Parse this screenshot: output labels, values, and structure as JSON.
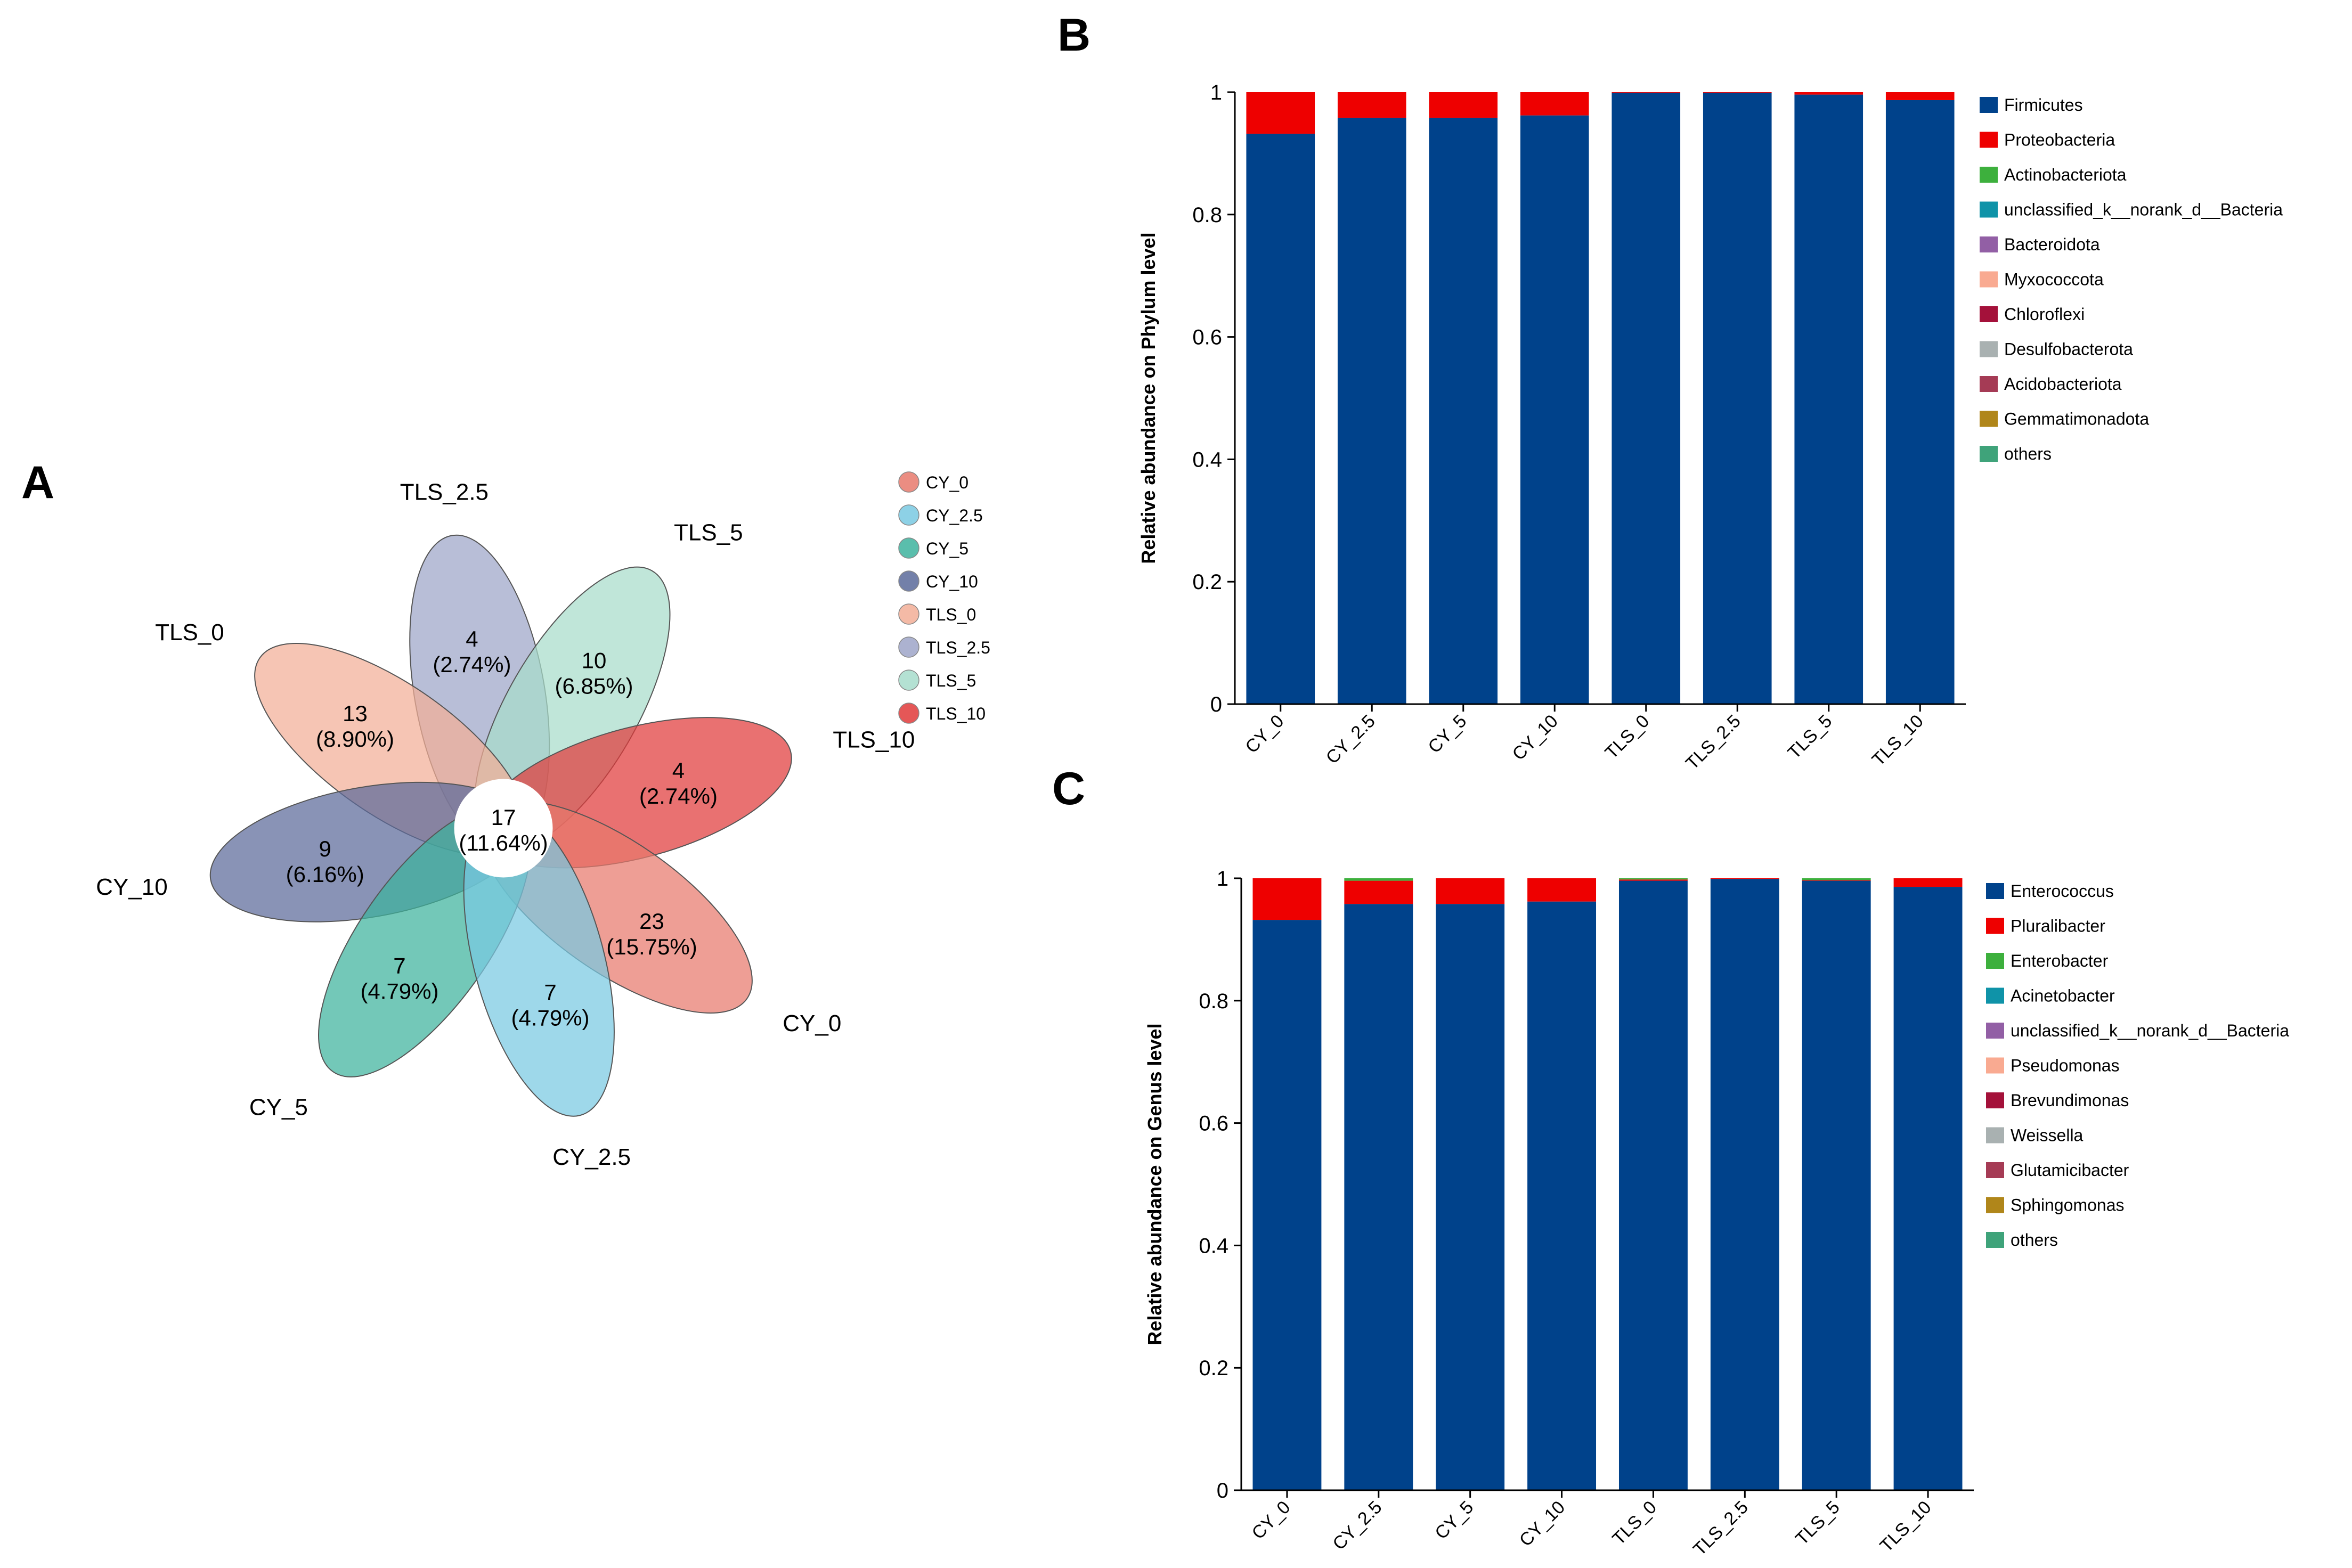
{
  "panels": {
    "a": "A",
    "b": "B",
    "c": "C"
  },
  "chart_data": [
    {
      "type": "venn-flower",
      "legend": [
        {
          "label": "CY_0",
          "color": "#E8796C"
        },
        {
          "label": "CY_2.5",
          "color": "#79C9E2"
        },
        {
          "label": "CY_5",
          "color": "#3DB39D"
        },
        {
          "label": "CY_10",
          "color": "#5B6A9A"
        },
        {
          "label": "TLS_0",
          "color": "#F2AE97"
        },
        {
          "label": "TLS_2.5",
          "color": "#9DA5C8"
        },
        {
          "label": "TLS_5",
          "color": "#A7DCCB"
        },
        {
          "label": "TLS_10",
          "color": "#E03A3A"
        }
      ],
      "core": {
        "count": "17",
        "pct": "(11.64%)"
      },
      "petals": [
        {
          "group": "TLS_2.5",
          "count": "4",
          "pct": "(2.74%)",
          "angle": -100
        },
        {
          "group": "TLS_5",
          "count": "10",
          "pct": "(6.85%)",
          "angle": -60
        },
        {
          "group": "TLS_0",
          "count": "13",
          "pct": "(8.90%)",
          "angle": -145
        },
        {
          "group": "TLS_10",
          "count": "4",
          "pct": "(2.74%)",
          "angle": -15
        },
        {
          "group": "CY_10",
          "count": "9",
          "pct": "(6.16%)",
          "angle": 170
        },
        {
          "group": "CY_0",
          "count": "23",
          "pct": "(15.75%)",
          "angle": 35
        },
        {
          "group": "CY_5",
          "count": "7",
          "pct": "(4.79%)",
          "angle": 125
        },
        {
          "group": "CY_2.5",
          "count": "7",
          "pct": "(4.79%)",
          "angle": 75
        }
      ]
    },
    {
      "type": "stacked-bar",
      "ylabel": "Relative abundance on Phylum level",
      "ylim": [
        0,
        1
      ],
      "yticks": [
        "0",
        "0.2",
        "0.4",
        "0.6",
        "0.8",
        "1"
      ],
      "categories": [
        "CY_0",
        "CY_2.5",
        "CY_5",
        "CY_10",
        "TLS_0",
        "TLS_2.5",
        "TLS_5",
        "TLS_10"
      ],
      "series": [
        {
          "name": "Firmicutes",
          "color": "#00428B",
          "values": [
            0.932,
            0.958,
            0.958,
            0.962,
            0.999,
            0.999,
            0.996,
            0.987
          ]
        },
        {
          "name": "Proteobacteria",
          "color": "#EE0000",
          "values": [
            0.068,
            0.042,
            0.042,
            0.038,
            0.001,
            0.001,
            0.004,
            0.013
          ]
        },
        {
          "name": "Actinobacteriota",
          "color": "#3DB03D",
          "values": [
            0,
            0,
            0,
            0,
            0,
            0,
            0,
            0
          ]
        },
        {
          "name": "unclassified_k__norank_d__Bacteria",
          "color": "#0F93A8",
          "values": [
            0,
            0,
            0,
            0,
            0,
            0,
            0,
            0
          ]
        },
        {
          "name": "Bacteroidota",
          "color": "#925FA5",
          "values": [
            0,
            0,
            0,
            0,
            0,
            0,
            0,
            0
          ]
        },
        {
          "name": "Myxococcota",
          "color": "#F9AA91",
          "values": [
            0,
            0,
            0,
            0,
            0,
            0,
            0,
            0
          ]
        },
        {
          "name": "Chloroflexi",
          "color": "#A4113A",
          "values": [
            0,
            0,
            0,
            0,
            0,
            0,
            0,
            0
          ]
        },
        {
          "name": "Desulfobacterota",
          "color": "#A9B1B1",
          "values": [
            0,
            0,
            0,
            0,
            0,
            0,
            0,
            0
          ]
        },
        {
          "name": "Acidobacteriota",
          "color": "#A53B55",
          "values": [
            0,
            0,
            0,
            0,
            0,
            0,
            0,
            0
          ]
        },
        {
          "name": "Gemmatimonadota",
          "color": "#B0861A",
          "values": [
            0,
            0,
            0,
            0,
            0,
            0,
            0,
            0
          ]
        },
        {
          "name": "others",
          "color": "#3FA37A",
          "values": [
            0,
            0,
            0,
            0,
            0,
            0,
            0,
            0
          ]
        }
      ]
    },
    {
      "type": "stacked-bar",
      "ylabel": "Relative abundance on Genus level",
      "ylim": [
        0,
        1
      ],
      "yticks": [
        "0",
        "0.2",
        "0.4",
        "0.6",
        "0.8",
        "1"
      ],
      "categories": [
        "CY_0",
        "CY_2.5",
        "CY_5",
        "CY_10",
        "TLS_0",
        "TLS_2.5",
        "TLS_5",
        "TLS_10"
      ],
      "series": [
        {
          "name": "Enterococcus",
          "color": "#00428B",
          "values": [
            0.932,
            0.958,
            0.958,
            0.962,
            0.996,
            0.999,
            0.996,
            0.986
          ]
        },
        {
          "name": "Pluralibacter",
          "color": "#EE0000",
          "values": [
            0.068,
            0.038,
            0.042,
            0.038,
            0.002,
            0.001,
            0.001,
            0.014
          ]
        },
        {
          "name": "Enterobacter",
          "color": "#3DB03D",
          "values": [
            0,
            0.004,
            0,
            0,
            0.002,
            0,
            0.003,
            0
          ]
        },
        {
          "name": "Acinetobacter",
          "color": "#0F93A8",
          "values": [
            0,
            0,
            0,
            0,
            0,
            0,
            0,
            0
          ]
        },
        {
          "name": "unclassified_k__norank_d__Bacteria",
          "color": "#925FA5",
          "values": [
            0,
            0,
            0,
            0,
            0,
            0,
            0,
            0
          ]
        },
        {
          "name": "Pseudomonas",
          "color": "#F9AA91",
          "values": [
            0,
            0,
            0,
            0,
            0,
            0,
            0,
            0
          ]
        },
        {
          "name": "Brevundimonas",
          "color": "#A4113A",
          "values": [
            0,
            0,
            0,
            0,
            0,
            0,
            0,
            0
          ]
        },
        {
          "name": "Weissella",
          "color": "#A9B1B1",
          "values": [
            0,
            0,
            0,
            0,
            0,
            0,
            0,
            0
          ]
        },
        {
          "name": "Glutamicibacter",
          "color": "#A53B55",
          "values": [
            0,
            0,
            0,
            0,
            0,
            0,
            0,
            0
          ]
        },
        {
          "name": "Sphingomonas",
          "color": "#B0861A",
          "values": [
            0,
            0,
            0,
            0,
            0,
            0,
            0,
            0
          ]
        },
        {
          "name": "others",
          "color": "#3FA37A",
          "values": [
            0,
            0,
            0,
            0,
            0,
            0,
            0,
            0
          ]
        }
      ]
    }
  ]
}
